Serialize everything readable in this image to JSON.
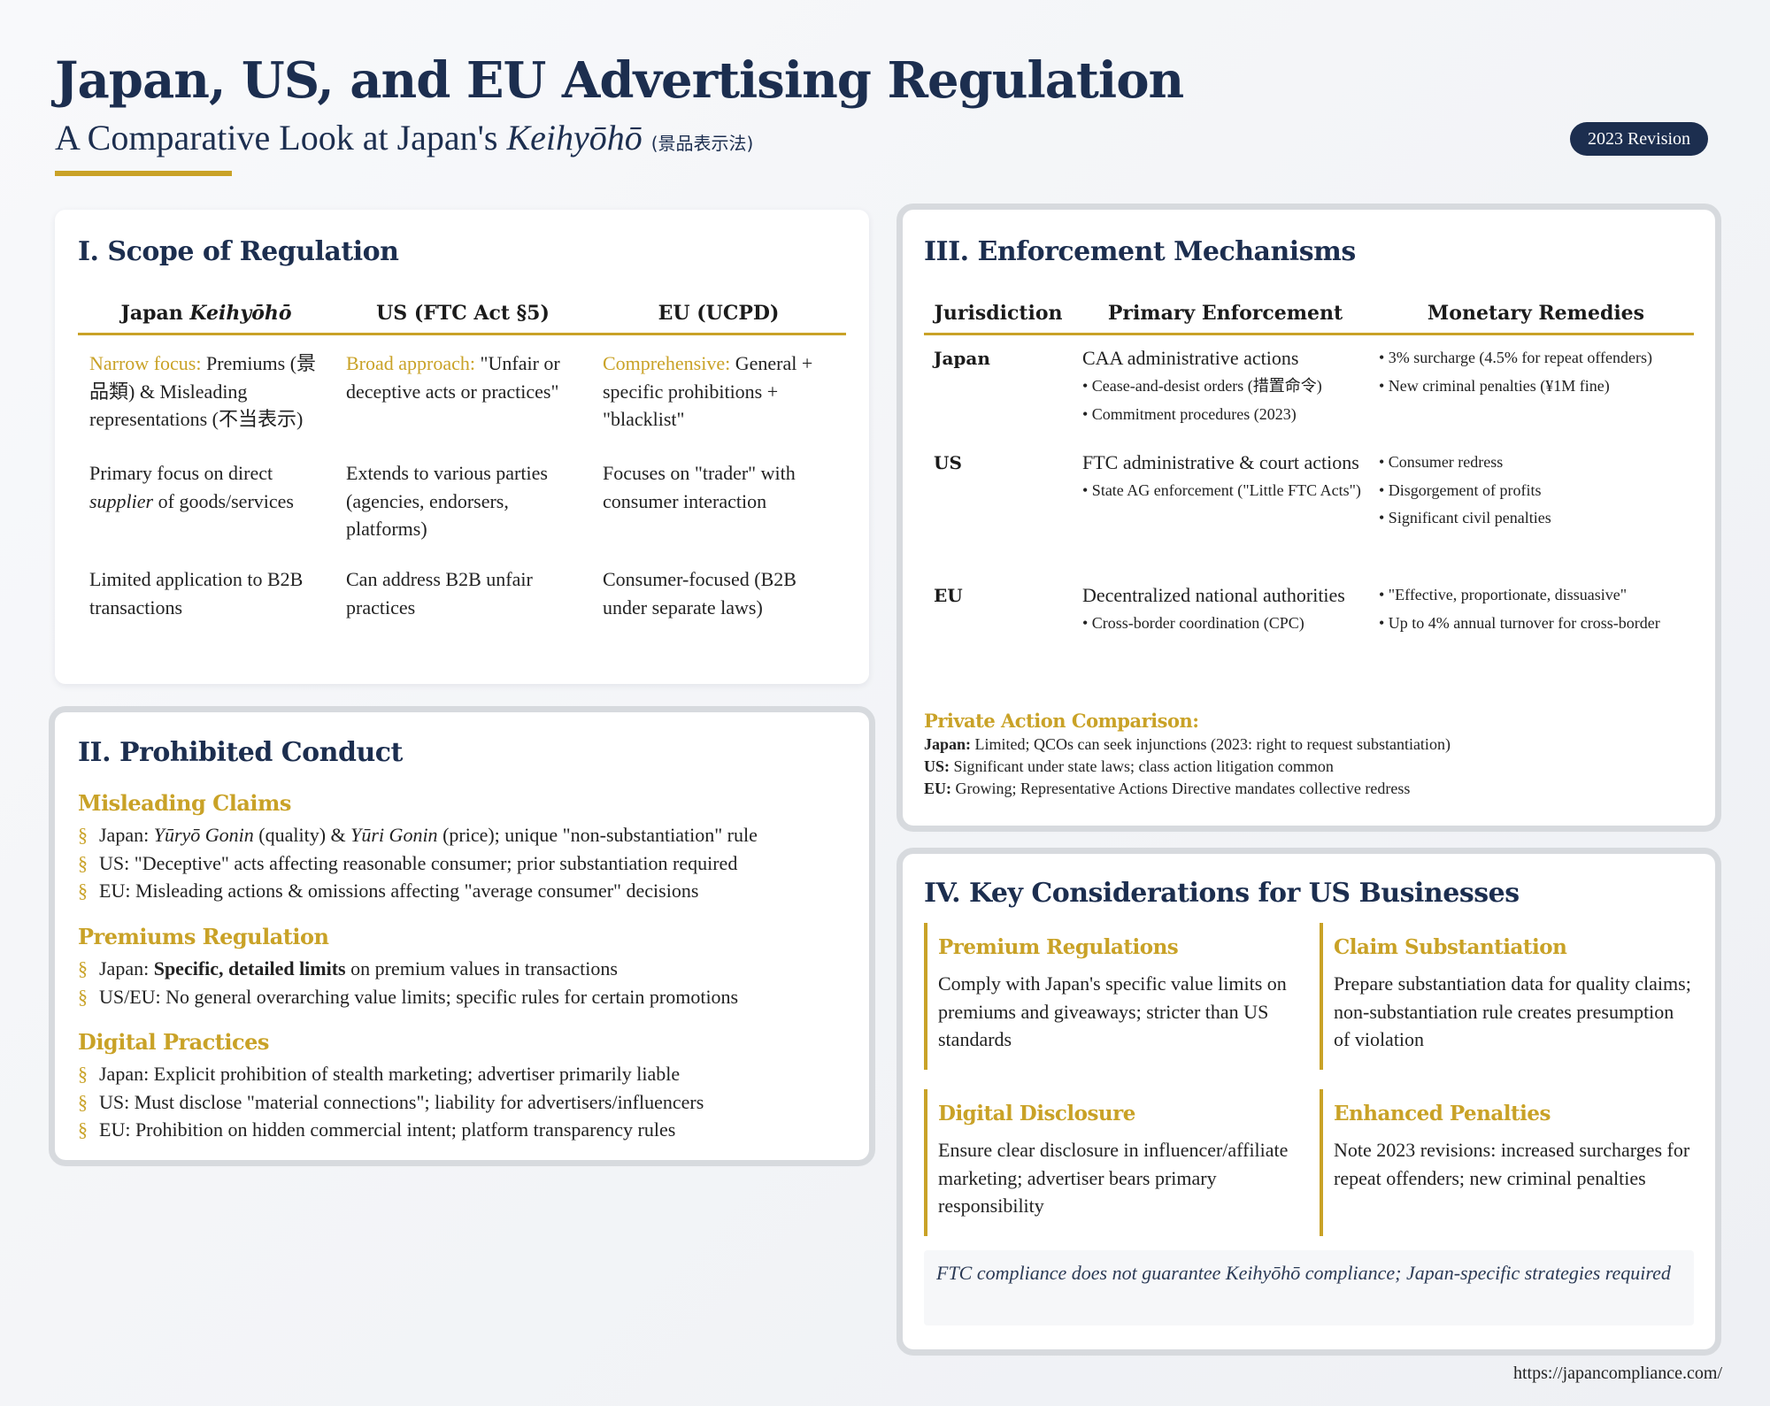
{
  "header": {
    "title": "Japan, US, and EU Advertising Regulation",
    "subtitle_lead": "A Comparative Look at Japan's ",
    "subtitle_term": "Keihyōhō",
    "subtitle_kanji": "(景品表示法)",
    "badge": "2023 Revision"
  },
  "scope": {
    "heading": "I. Scope of Regulation",
    "columns": {
      "japan_prefix": "Japan ",
      "japan_term": "Keihyōhō",
      "us": "US (FTC Act §5)",
      "eu": "EU (UCPD)"
    },
    "row1": {
      "japan_lead": "Narrow focus:",
      "japan_text": " Premiums (景品類) & Misleading representations (不当表示)",
      "us_lead": "Broad approach:",
      "us_text": " \"Unfair or deceptive acts or practices\"",
      "eu_lead": "Comprehensive:",
      "eu_text": " General + specific prohibitions + \"blacklist\""
    },
    "row2": {
      "japan_a": "Primary focus on direct ",
      "japan_italic": "supplier",
      "japan_b": " of goods/services",
      "us": "Extends to various parties (agencies, endorsers, platforms)",
      "eu": "Focuses on \"trader\" with consumer interaction"
    },
    "row3": {
      "japan": "Limited application to B2B transactions",
      "us": "Can address B2B unfair practices",
      "eu": "Consumer-focused (B2B under separate laws)"
    }
  },
  "prohibited": {
    "heading": "II. Prohibited Conduct",
    "marker": "§",
    "misleading": {
      "title": "Misleading Claims",
      "item1_a": "Japan: ",
      "item1_i1": "Yūryō Gonin",
      "item1_b": " (quality) & ",
      "item1_i2": "Yūri Gonin",
      "item1_c": " (price); unique \"non-substantiation\" rule",
      "item2": "US: \"Deceptive\" acts affecting reasonable consumer; prior substantiation required",
      "item3": "EU: Misleading actions & omissions affecting \"average consumer\" decisions"
    },
    "premiums": {
      "title": "Premiums Regulation",
      "item1_a": "Japan: ",
      "item1_bold": "Specific, detailed limits",
      "item1_b": " on premium values in transactions",
      "item2": "US/EU: No general overarching value limits; specific rules for certain promotions"
    },
    "digital": {
      "title": "Digital Practices",
      "item1": "Japan: Explicit prohibition of stealth marketing; advertiser primarily liable",
      "item2": "US: Must disclose \"material connections\"; liability for advertisers/influencers",
      "item3": "EU: Prohibition on hidden commercial intent; platform transparency rules"
    }
  },
  "enforcement": {
    "heading": "III. Enforcement Mechanisms",
    "columns": {
      "jurisdiction": "Jurisdiction",
      "primary": "Primary Enforcement",
      "monetary": "Monetary Remedies"
    },
    "japan": {
      "name": "Japan",
      "primary": "CAA administrative actions",
      "sub1": "• Cease-and-desist orders (措置命令)",
      "sub2": "• Commitment procedures (2023)",
      "mon1": "• 3% surcharge (4.5% for repeat offenders)",
      "mon2": "• New criminal penalties (¥1M fine)"
    },
    "us": {
      "name": "US",
      "primary": "FTC administrative & court actions",
      "sub1": "• State AG enforcement (\"Little FTC Acts\")",
      "mon1": "• Consumer redress",
      "mon2": "• Disgorgement of profits",
      "mon3": "• Significant civil penalties"
    },
    "eu": {
      "name": "EU",
      "primary": "Decentralized national authorities",
      "sub1": "• Cross-border coordination (CPC)",
      "mon1": "• \"Effective, proportionate, dissuasive\"",
      "mon2": "• Up to 4% annual turnover for cross-border"
    },
    "private": {
      "title": "Private Action Comparison:",
      "japan_label": "Japan:",
      "japan_text": " Limited; QCOs can seek injunctions (2023: right to request substantiation)",
      "us_label": "US:",
      "us_text": " Significant under state laws; class action litigation common",
      "eu_label": "EU:",
      "eu_text": " Growing; Representative Actions Directive mandates collective redress"
    }
  },
  "considerations": {
    "heading": "IV. Key Considerations for US Businesses",
    "premium": {
      "title": "Premium Regulations",
      "text": "Comply with Japan's specific value limits on premiums and giveaways; stricter than US standards"
    },
    "claim": {
      "title": "Claim Substantiation",
      "text": "Prepare substantiation data for quality claims; non-substantiation rule creates presumption of violation"
    },
    "digital": {
      "title": "Digital Disclosure",
      "text": "Ensure clear disclosure in influencer/affiliate marketing; advertiser bears primary responsibility"
    },
    "penalties": {
      "title": "Enhanced Penalties",
      "text": "Note 2023 revisions: increased surcharges for repeat offenders; new criminal penalties"
    },
    "note": "FTC compliance does not guarantee Keihyōhō compliance; Japan-specific strategies required"
  },
  "footer": {
    "url": "https://japancompliance.com/"
  },
  "colors": {
    "navy": "#1c2e4f",
    "gold": "#c9a227",
    "background": "#f3f5f8"
  }
}
